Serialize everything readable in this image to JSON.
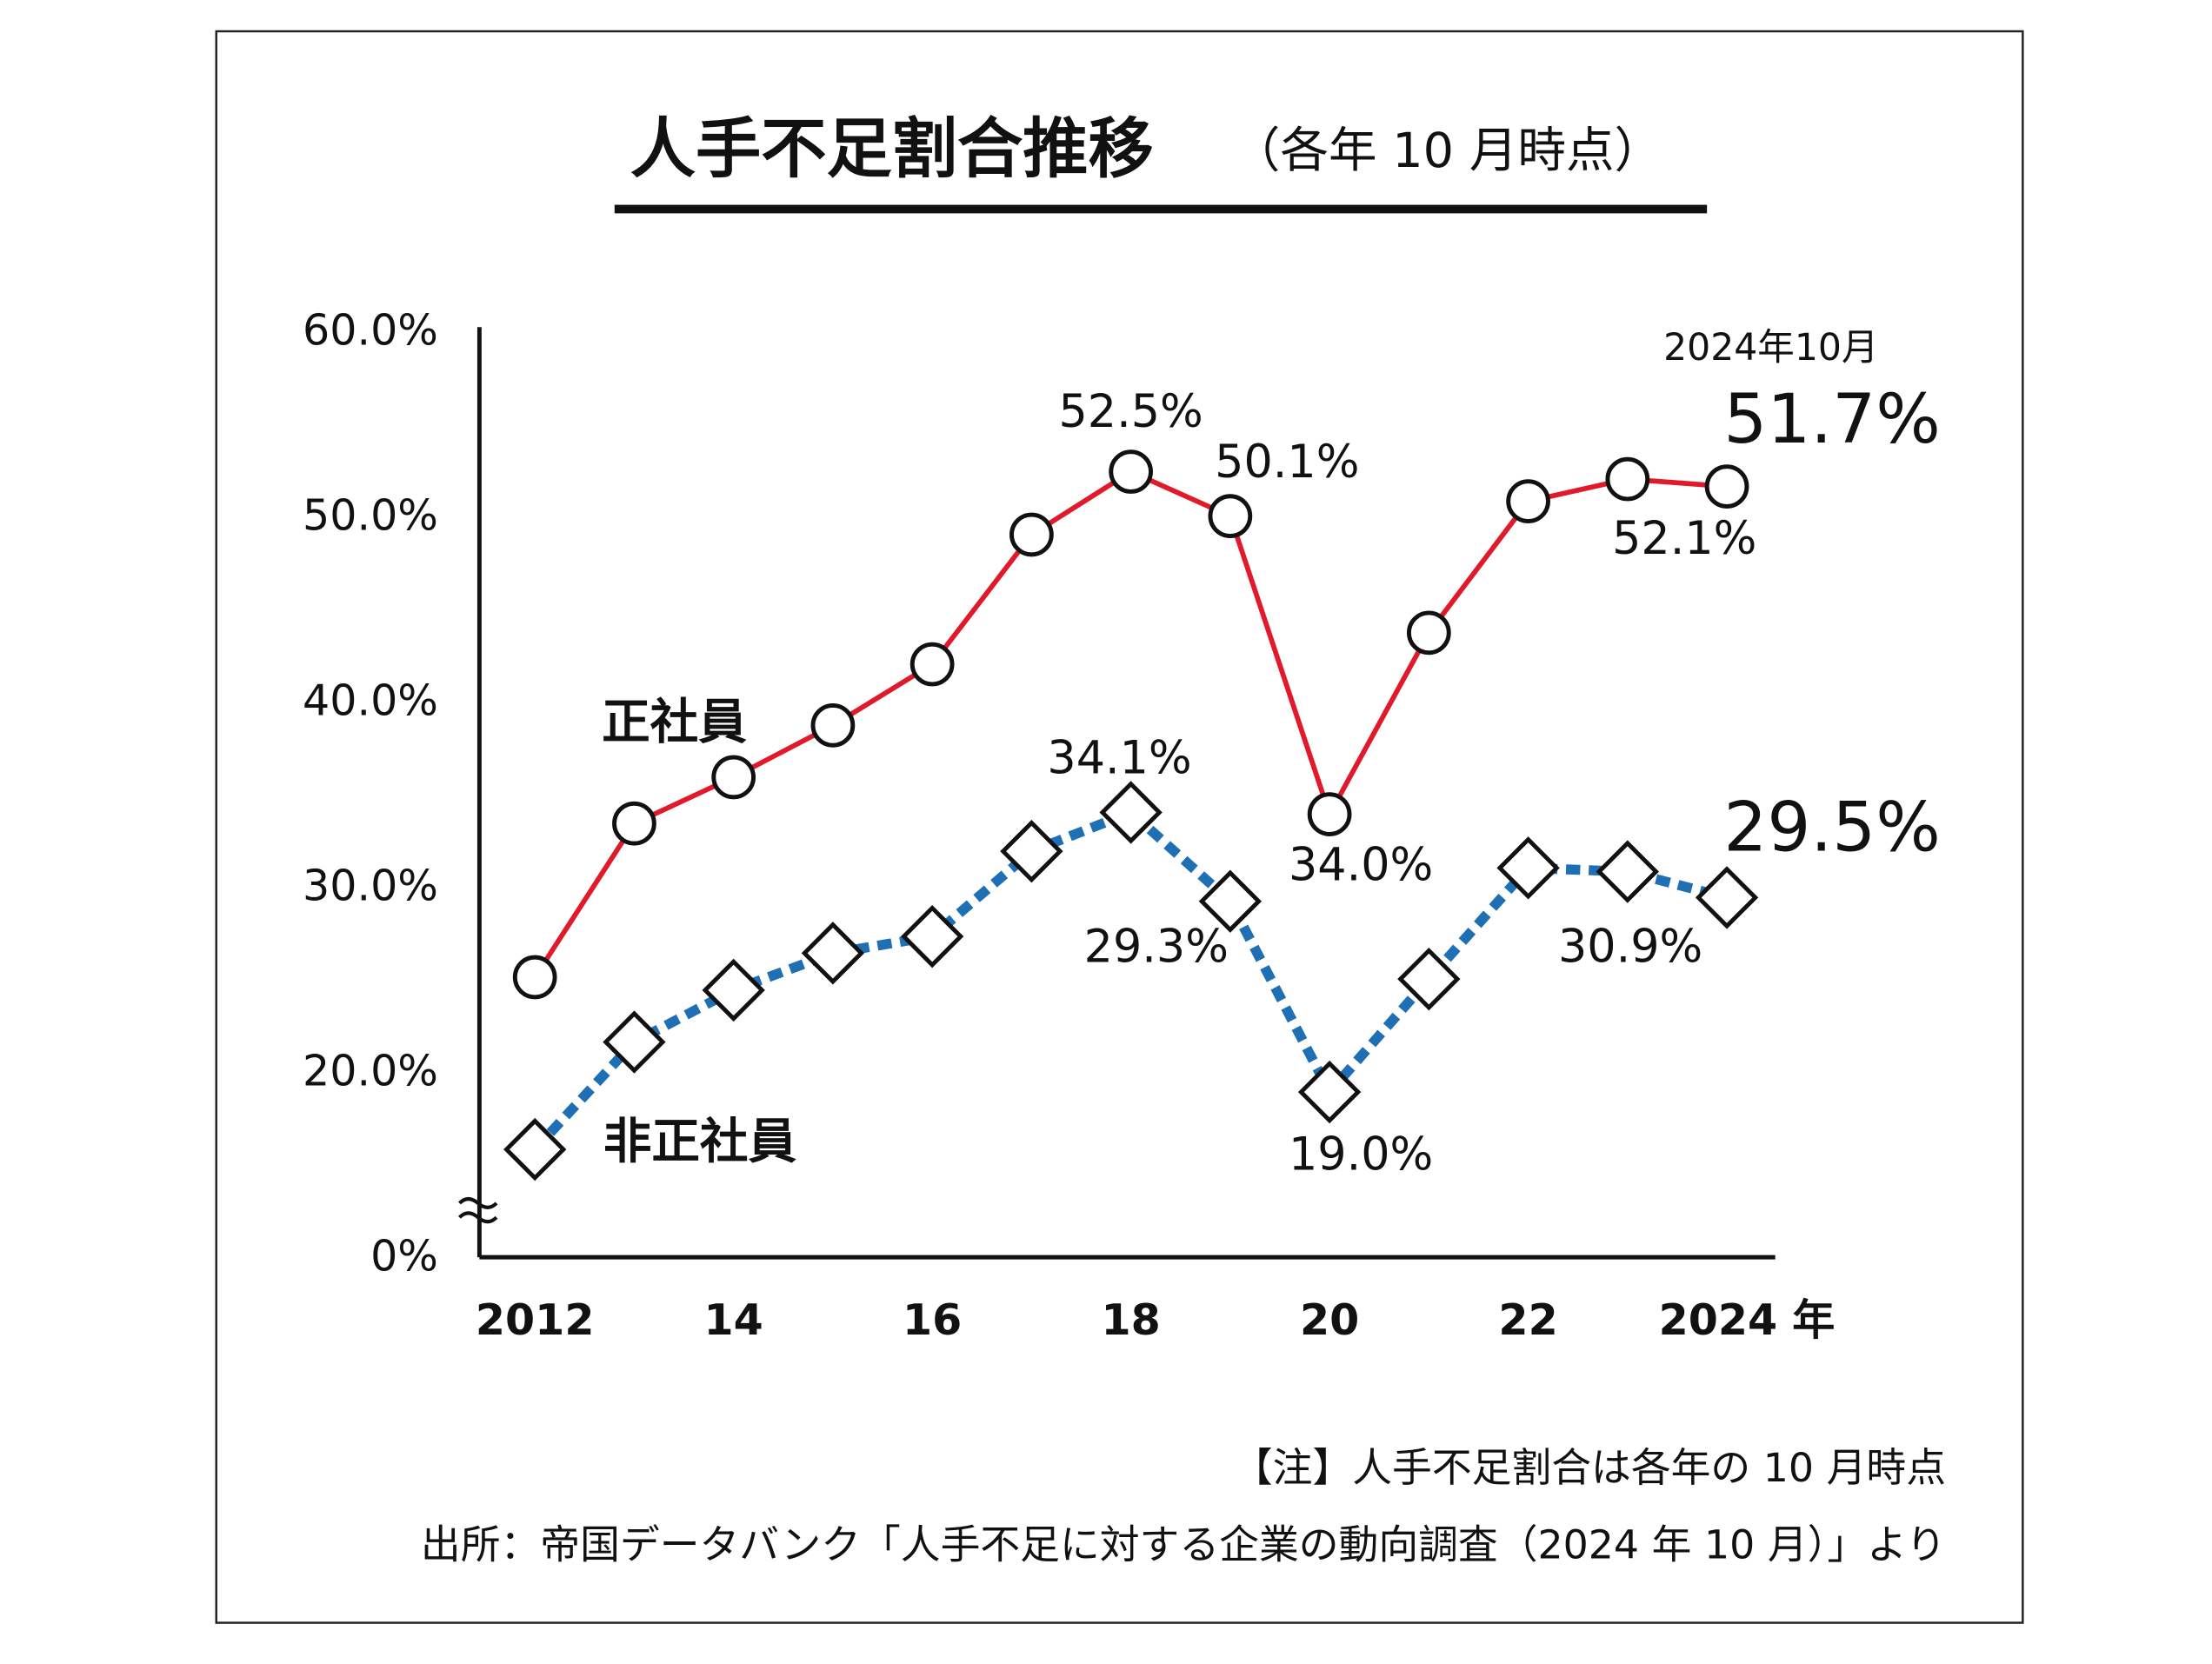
{
  "chart_data": {
    "type": "line",
    "title": "人手不足割合推移",
    "subtitle": "（各年 10 月時点）",
    "annotation": "2024年10月",
    "notes": [
      "【注】人手不足割合は各年の 10 月時点",
      "出所：帝国データバンク「人手不足に対する企業の動向調査（2024 年 10 月）」より"
    ],
    "x": [
      2012,
      2013,
      2014,
      2015,
      2016,
      2017,
      2018,
      2019,
      2020,
      2021,
      2022,
      2023,
      2024
    ],
    "xlim": [
      2012,
      2024
    ],
    "xticks": [
      2012,
      {
        "value": 2014,
        "label": "14"
      },
      {
        "value": 2016,
        "label": "16"
      },
      {
        "value": 2018,
        "label": "18"
      },
      {
        "value": 2020,
        "label": "20"
      },
      {
        "value": 2022,
        "label": "22"
      },
      {
        "value": 2024,
        "label": "2024 年"
      }
    ],
    "ylim": [
      0,
      60
    ],
    "axis_break": [
      0,
      10
    ],
    "yticks": [
      {
        "value": 0,
        "label": "0%"
      },
      {
        "value": 20,
        "label": "20.0%"
      },
      {
        "value": 30,
        "label": "30.0%"
      },
      {
        "value": 40,
        "label": "40.0%"
      },
      {
        "value": 50,
        "label": "50.0%"
      },
      {
        "value": 60,
        "label": "60.0%"
      }
    ],
    "series": [
      {
        "name": "正社員",
        "color": "#e0192b",
        "marker": "circle",
        "values": [
          25.2,
          33.5,
          36.0,
          38.8,
          42.1,
          49.1,
          52.5,
          50.1,
          34.0,
          43.8,
          50.9,
          52.1,
          51.7
        ],
        "value_labels": [
          null,
          null,
          null,
          null,
          null,
          null,
          "52.5%",
          "50.1%",
          "34.0%",
          null,
          null,
          "52.1%",
          "51.7%"
        ]
      },
      {
        "name": "非正社員",
        "color": "#1f6fb4",
        "marker": "diamond",
        "dashed": true,
        "values": [
          15.9,
          21.7,
          24.5,
          26.5,
          27.4,
          32.0,
          34.1,
          29.3,
          19.0,
          25.1,
          31.1,
          30.9,
          29.5
        ],
        "value_labels": [
          null,
          null,
          null,
          null,
          null,
          null,
          "34.1%",
          "29.3%",
          "19.0%",
          null,
          null,
          "30.9%",
          "29.5%"
        ]
      }
    ]
  }
}
